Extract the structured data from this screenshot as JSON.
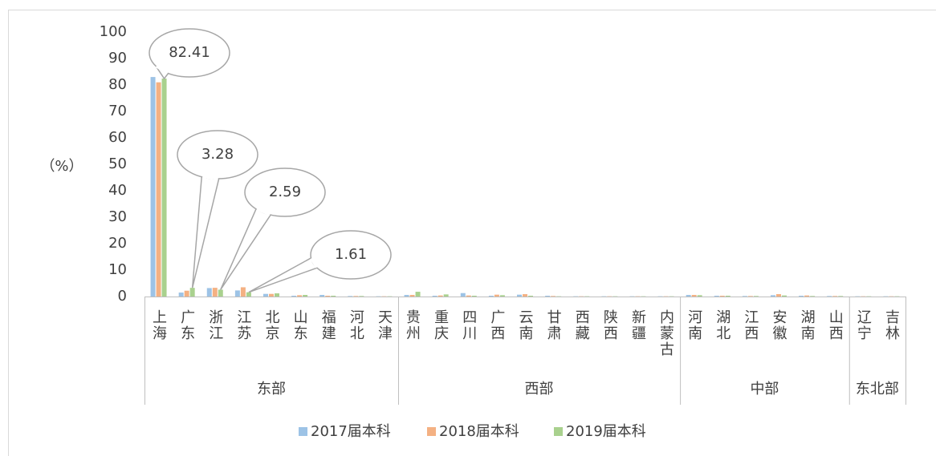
{
  "chart_data": {
    "type": "bar",
    "y_label": "（%）",
    "categories": [
      "上海",
      "广东",
      "浙江",
      "江苏",
      "北京",
      "山东",
      "福建",
      "河北",
      "天津",
      "贵州",
      "重庆",
      "四川",
      "广西",
      "云南",
      "甘肃",
      "西藏",
      "陕西",
      "新疆",
      "内蒙古",
      "河南",
      "湖北",
      "江西",
      "安徽",
      "湖南",
      "山西",
      "辽宁",
      "吉林"
    ],
    "groups": [
      {
        "name": "东部",
        "count": 9
      },
      {
        "name": "西部",
        "count": 10
      },
      {
        "name": "中部",
        "count": 6
      },
      {
        "name": "东北部",
        "count": 2
      }
    ],
    "series": [
      {
        "name": "2017届本科",
        "color": "#9dc3e6",
        "values": [
          83,
          1.5,
          3.2,
          2.3,
          1.0,
          0.3,
          0.6,
          0.2,
          0.1,
          0.6,
          0.3,
          1.3,
          0.3,
          0.7,
          0.3,
          0.1,
          0.1,
          0.1,
          0.1,
          0.6,
          0.3,
          0.2,
          0.5,
          0.3,
          0.2,
          0.1,
          0.1
        ]
      },
      {
        "name": "2018届本科",
        "color": "#f4b183",
        "values": [
          81,
          2.2,
          3.3,
          3.5,
          1.0,
          0.5,
          0.3,
          0.2,
          0.1,
          0.6,
          0.4,
          0.4,
          0.7,
          0.9,
          0.2,
          0.1,
          0.1,
          0.1,
          0.1,
          0.6,
          0.3,
          0.2,
          0.9,
          0.4,
          0.2,
          0.1,
          0.1
        ]
      },
      {
        "name": "2019届本科",
        "color": "#a9d18e",
        "values": [
          82.41,
          3.28,
          2.59,
          1.61,
          1.2,
          0.6,
          0.3,
          0.2,
          0.1,
          1.8,
          0.8,
          0.3,
          0.5,
          0.3,
          0.1,
          0.1,
          0.1,
          0.1,
          0.1,
          0.5,
          0.3,
          0.2,
          0.4,
          0.2,
          0.2,
          0.1,
          0.1
        ]
      }
    ],
    "data_labels": {
      "series": 2,
      "indices": [
        0,
        1,
        2,
        3
      ]
    },
    "ylim": [
      0,
      100
    ],
    "yticks": [
      0,
      10,
      20,
      30,
      40,
      50,
      60,
      70,
      80,
      90,
      100
    ],
    "grid": false,
    "legend": "bottom"
  }
}
